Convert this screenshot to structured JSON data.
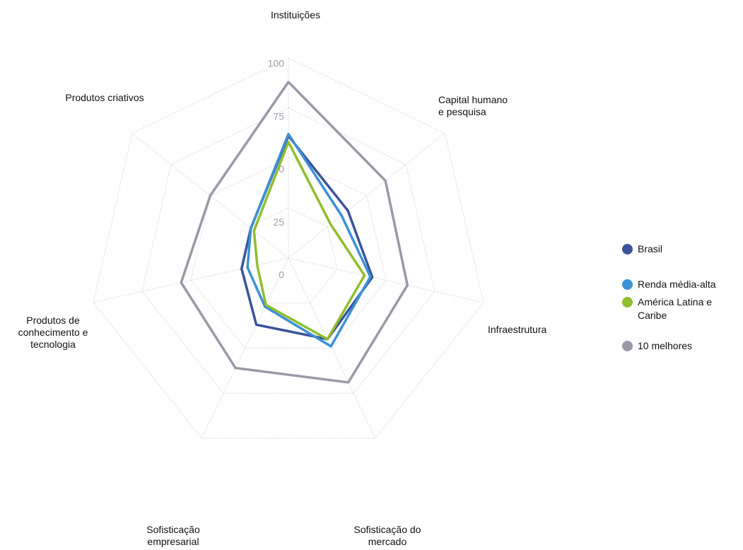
{
  "chart_data": {
    "type": "radar",
    "categories": [
      "Instituições",
      "Capital humano e pesquisa",
      "Infraestrutura",
      "Sofisticação do mercado",
      "Sofisticação empresarial",
      "Produtos de conhecimento e tecnologia",
      "Produtos criativos"
    ],
    "rlim": [
      0,
      100
    ],
    "rticks": [
      0,
      25,
      50,
      75,
      100
    ],
    "grid": true,
    "legend": "right",
    "series": [
      {
        "name": "Brasil",
        "color": "#3a539b",
        "values": [
          61,
          38,
          43,
          45,
          37,
          24,
          24
        ]
      },
      {
        "name": "Renda média-alta",
        "color": "#3c91d6",
        "values": [
          62,
          34,
          42,
          49,
          27,
          21,
          24
        ]
      },
      {
        "name": "América Latina e Caribe",
        "color": "#8fbe2e",
        "values": [
          58,
          27,
          39,
          45,
          26,
          16,
          22
        ]
      },
      {
        "name": "10 melhores",
        "color": "#9a99a8",
        "values": [
          88,
          62,
          61,
          69,
          61,
          55,
          50
        ]
      }
    ]
  }
}
